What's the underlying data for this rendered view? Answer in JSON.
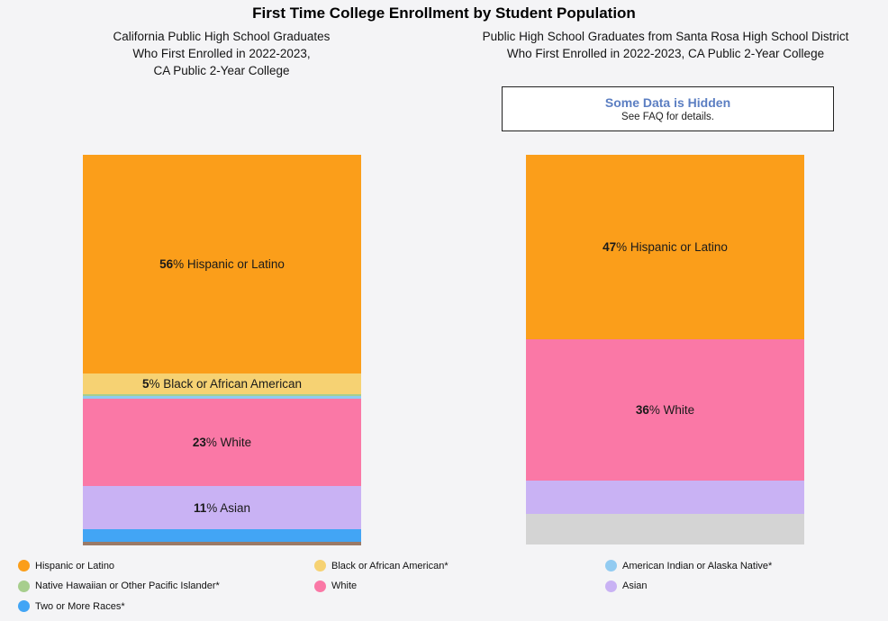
{
  "page": {
    "title": "First Time College Enrollment by Student Population",
    "background": "#F4F4F6"
  },
  "colors": {
    "notice_title": "#5B7EC2",
    "notice_border": "#222222",
    "notice_background": "#FFFFFF",
    "bar_label_text": "#1A1A1A"
  },
  "hidden_notice": {
    "title": "Some Data is Hidden",
    "subtitle": "See FAQ for details."
  },
  "chart_data": [
    {
      "type": "bar",
      "variant": "stacked-percentage-column",
      "subtitle_lines": [
        "California Public High School Graduates",
        "Who First Enrolled in 2022-2023,",
        "CA Public 2-Year College"
      ],
      "segments": [
        {
          "label": "Hispanic or Latino",
          "pct": "56",
          "value_pct": 56,
          "height_pct": 56.0,
          "color": "#FB9E1A",
          "show_label": true
        },
        {
          "label": "Black or African American",
          "pct": "5",
          "value_pct": 5,
          "height_pct": 5.3,
          "color": "#F6D273",
          "show_label": true
        },
        {
          "label": "Native Hawaiian or Other Pacific Islander",
          "value_pct": 0.5,
          "height_pct": 0.5,
          "color": "#A7CE8D",
          "show_label": false
        },
        {
          "label": "American Indian or Alaska Native",
          "value_pct": 0.6,
          "height_pct": 0.6,
          "color": "#8FCBF0",
          "show_label": false
        },
        {
          "label": "White",
          "pct": "23",
          "value_pct": 23,
          "height_pct": 22.4,
          "color": "#FA78A6",
          "show_label": true
        },
        {
          "label": "Asian",
          "pct": "11",
          "value_pct": 11,
          "height_pct": 11.1,
          "color": "#C9B2F4",
          "show_label": true
        },
        {
          "label": "Two or More Races",
          "value_pct": 3.2,
          "height_pct": 3.2,
          "color": "#42A5F5",
          "show_label": false
        },
        {
          "label": "",
          "value_pct": 0.9,
          "height_pct": 0.9,
          "color": "#9B7A67",
          "show_label": false
        }
      ]
    },
    {
      "type": "bar",
      "variant": "stacked-percentage-column",
      "subtitle_lines": [
        "Public High School Graduates from Santa Rosa High School District",
        "Who First Enrolled in 2022-2023, CA Public 2-Year College"
      ],
      "segments": [
        {
          "label": "Hispanic or Latino",
          "pct": "47",
          "value_pct": 47,
          "height_pct": 47.3,
          "color": "#FB9E1A",
          "show_label": true
        },
        {
          "label": "White",
          "pct": "36",
          "value_pct": 36,
          "height_pct": 36.3,
          "color": "#FA78A6",
          "show_label": true
        },
        {
          "label": "Asian",
          "value_pct": 8.5,
          "height_pct": 8.5,
          "color": "#C9B2F4",
          "show_label": false
        },
        {
          "label": "",
          "value_pct": 7.9,
          "height_pct": 7.9,
          "color": "#D4D4D4",
          "show_label": false
        }
      ]
    }
  ],
  "legend": {
    "columns": [
      [
        {
          "label": "Hispanic or Latino",
          "color": "#FB9E1A"
        },
        {
          "label": "Native Hawaiian or Other Pacific Islander*",
          "color": "#A7CE8D"
        },
        {
          "label": "Two or More Races*",
          "color": "#42A5F5"
        }
      ],
      [
        {
          "label": "Black or African American*",
          "color": "#F6D273"
        },
        {
          "label": "White",
          "color": "#FA78A6"
        }
      ],
      [
        {
          "label": "American Indian or Alaska Native*",
          "color": "#92CBF1"
        },
        {
          "label": "Asian",
          "color": "#C9B2F4"
        }
      ]
    ]
  }
}
